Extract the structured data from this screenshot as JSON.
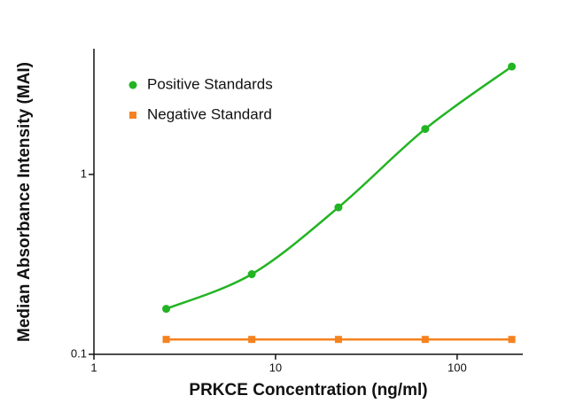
{
  "chart_data": {
    "type": "scatter",
    "x_label": "PRKCE Concentration (ng/ml)",
    "y_label": "Median Absorbance Intensity (MAI)",
    "x": [
      2.5,
      7.4,
      22.2,
      66.7,
      200
    ],
    "series": [
      {
        "name": "Positive Standards",
        "color": "#22b422",
        "marker": "circle",
        "values": [
          0.179,
          0.279,
          0.656,
          1.79,
          3.98
        ]
      },
      {
        "name": "Negative Standard",
        "color": "#f5821f",
        "marker": "square",
        "values": [
          0.121,
          0.121,
          0.121,
          0.121,
          0.121
        ]
      }
    ],
    "x_log": true,
    "y_log": true,
    "xlim": [
      1,
      230
    ],
    "ylim": [
      0.1,
      5
    ],
    "xticks": [
      1,
      10,
      100
    ],
    "yticks": [
      0.1,
      1
    ],
    "legend": "upper left"
  }
}
